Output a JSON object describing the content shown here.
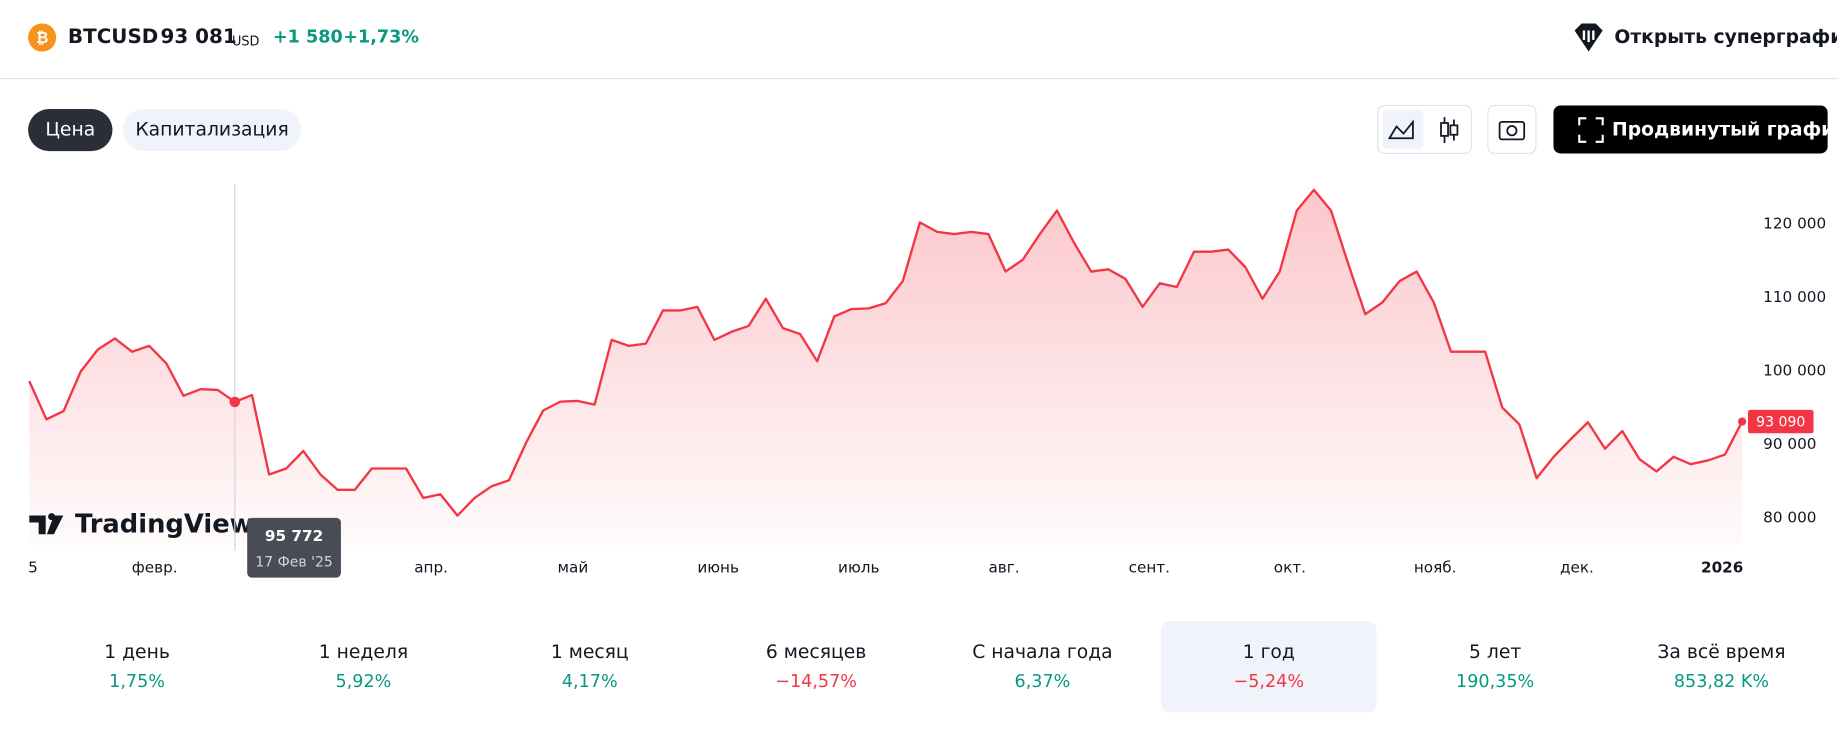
{
  "header": {
    "symbol": "BTCUSD",
    "price": "93 081",
    "currency": "USD",
    "change": "+1 580",
    "change_percent": "+1,73%",
    "action": "Открыть суперграфик"
  },
  "tabs": [
    "Цена",
    "Капитализация"
  ],
  "advanced_button": "Продвинутый график",
  "chart_data": {
    "type": "line",
    "color": "#f23645",
    "watermark": "TradingView",
    "values": [
      98600,
      93400,
      94500,
      99900,
      102900,
      104400,
      102600,
      103400,
      101000,
      96600,
      97500,
      97400,
      95772,
      96700,
      85900,
      86700,
      89100,
      85900,
      83800,
      83800,
      86700,
      86700,
      86700,
      82700,
      83200,
      80300,
      82700,
      84300,
      85100,
      90200,
      94600,
      95800,
      95900,
      95400,
      104200,
      103400,
      103700,
      108200,
      108200,
      108700,
      104200,
      105300,
      106100,
      109800,
      105800,
      105000,
      101300,
      107400,
      108400,
      108500,
      109200,
      112200,
      120200,
      118900,
      118600,
      118900,
      118600,
      113500,
      115100,
      118600,
      121800,
      117400,
      113500,
      113800,
      112500,
      108700,
      111900,
      111400,
      116200,
      116200,
      116500,
      114100,
      109800,
      113500,
      121800,
      124600,
      121800,
      114600,
      107700,
      109300,
      112200,
      113500,
      109300,
      102600,
      102600,
      102600,
      95000,
      92700,
      85400,
      88300,
      90700,
      93000,
      89400,
      91800,
      88000,
      86300,
      88300,
      87300,
      87800,
      88600,
      93090
    ],
    "last_value_label": "93 090",
    "tooltip": {
      "value_label": "95 772",
      "date": "17 Фев '25"
    },
    "x_labels": [
      "5",
      "февр.",
      "апр.",
      "май",
      "июнь",
      "июль",
      "авг.",
      "сент.",
      "окт.",
      "нояб.",
      "дек.",
      "2026"
    ],
    "ylim": [
      76330,
      125420
    ],
    "yticks": [
      {
        "value": 80000,
        "label": "80 000"
      },
      {
        "value": 90000,
        "label": "90 000"
      },
      {
        "value": 100000,
        "label": "100 000"
      },
      {
        "value": 110000,
        "label": "110 000"
      },
      {
        "value": 120000,
        "label": "120 000"
      }
    ]
  },
  "periods": [
    {
      "name": "1 день",
      "change": "1,75%"
    },
    {
      "name": "1 неделя",
      "change": "5,92%"
    },
    {
      "name": "1 месяц",
      "change": "4,17%"
    },
    {
      "name": "6 месяцев",
      "change": "−14,57%"
    },
    {
      "name": "С начала года",
      "change": "6,37%"
    },
    {
      "name": "1 год",
      "change": "−5,24%",
      "selected": true
    },
    {
      "name": "5 лет",
      "change": "190,35%"
    },
    {
      "name": "За всё время",
      "change": "853,82 K%"
    }
  ]
}
